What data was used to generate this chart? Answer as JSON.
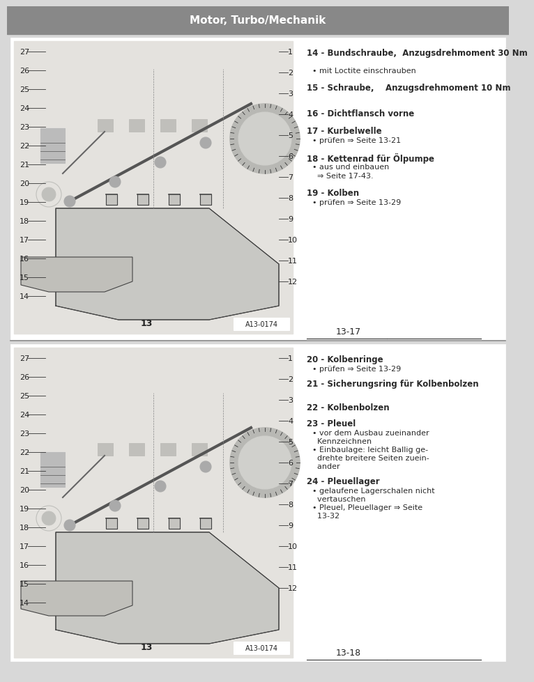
{
  "bg_color": "#d8d8d8",
  "page_bg": "#e8e8e8",
  "panel_bg": "#f0f0f0",
  "diagram_bg": "#e4e2de",
  "text_color": "#2a2a2a",
  "header_bg": "#888888",
  "header_text": "Motor, Turbo/Mechanik",
  "top_section": {
    "page_num": "13-17",
    "items": [
      {
        "num": "14",
        "bold": "Bundschraube,  Anzugsdrehmoment 30 Nm",
        "bullets": [
          "• mit Loctite einschrauben"
        ]
      },
      {
        "num": "15",
        "bold": "Schraube,    Anzugsdrehmoment 10 Nm",
        "bullets": []
      },
      {
        "num": "16",
        "bold": "Dichtflansch vorne",
        "bullets": []
      },
      {
        "num": "17",
        "bold": "Kurbelwelle",
        "bullets": [
          "• prüfen ⇒ Seite 13-21"
        ]
      },
      {
        "num": "18",
        "bold": "Kettenrad für Ölpumpe",
        "bullets": [
          "• aus und einbauen",
          "  ⇒ Seite 17-43."
        ]
      },
      {
        "num": "19",
        "bold": "Kolben",
        "bullets": [
          "• prüfen ⇒ Seite 13-29"
        ]
      }
    ]
  },
  "bottom_section": {
    "page_num": "13-18",
    "items": [
      {
        "num": "20",
        "bold": "Kolbenringe",
        "bullets": [
          "• prüfen ⇒ Seite 13-29"
        ]
      },
      {
        "num": "21",
        "bold": "Sicherungsring für Kolbenbolzen",
        "bullets": []
      },
      {
        "num": "22",
        "bold": "Kolbenbolzen",
        "bullets": []
      },
      {
        "num": "23",
        "bold": "Pleuel",
        "bullets": [
          "• vor dem Ausbau zueinander",
          "  Kennzeichnen",
          "• Einbaulage: leicht Ballig ge-",
          "  drehte breitere Seiten zuein-",
          "  ander"
        ]
      },
      {
        "num": "24",
        "bold": "Pleuellager",
        "bullets": [
          "• gelaufene Lagerschalen nicht",
          "  vertauschen",
          "• Pleuel, Pleuellager ⇒ Seite",
          "  13-32"
        ]
      }
    ]
  },
  "diagram_ref": "A13-0174",
  "diagram_numbers_left": [
    "27",
    "26",
    "25",
    "24",
    "23",
    "22",
    "21",
    "20",
    "19",
    "18",
    "17",
    "16",
    "15",
    "14"
  ],
  "diagram_numbers_right": [
    "1",
    "2",
    "3",
    "4",
    "5",
    "6",
    "7",
    "8",
    "9",
    "10",
    "11",
    "12"
  ],
  "diagram_number_bottom": "13"
}
